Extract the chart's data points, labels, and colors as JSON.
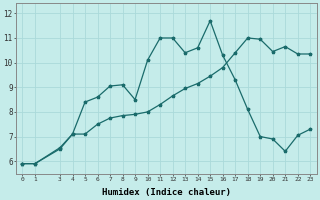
{
  "xlabel": "Humidex (Indice chaleur)",
  "background_color": "#c5ecea",
  "line_color": "#1a6b6b",
  "grid_color": "#aadada",
  "xlim": [
    -0.5,
    23.5
  ],
  "ylim": [
    5.5,
    12.4
  ],
  "yticks": [
    6,
    7,
    8,
    9,
    10,
    11,
    12
  ],
  "xticks": [
    0,
    1,
    3,
    4,
    5,
    6,
    7,
    8,
    9,
    10,
    11,
    12,
    13,
    14,
    15,
    16,
    17,
    18,
    19,
    20,
    21,
    22,
    23
  ],
  "series1_x": [
    0,
    1,
    3,
    4,
    5,
    6,
    7,
    8,
    9,
    10,
    11,
    12,
    13,
    14,
    15,
    16,
    17,
    18,
    19,
    20,
    21,
    22,
    23
  ],
  "series1_y": [
    5.9,
    5.9,
    6.5,
    7.1,
    7.1,
    7.5,
    7.75,
    7.85,
    7.9,
    8.0,
    8.3,
    8.65,
    8.95,
    9.15,
    9.45,
    9.8,
    10.4,
    11.0,
    10.95,
    10.45,
    10.65,
    10.35,
    10.35
  ],
  "series2_x": [
    0,
    1,
    3,
    4,
    5,
    6,
    7,
    8,
    9,
    10,
    11,
    12,
    13,
    14,
    15,
    16,
    17,
    18,
    19,
    20,
    21,
    22,
    23
  ],
  "series2_y": [
    5.9,
    5.9,
    6.55,
    7.1,
    8.4,
    8.6,
    9.05,
    9.1,
    8.5,
    10.1,
    11.0,
    11.0,
    10.4,
    10.6,
    11.7,
    10.3,
    9.3,
    8.1,
    7.0,
    6.9,
    6.4,
    7.05,
    7.3
  ]
}
